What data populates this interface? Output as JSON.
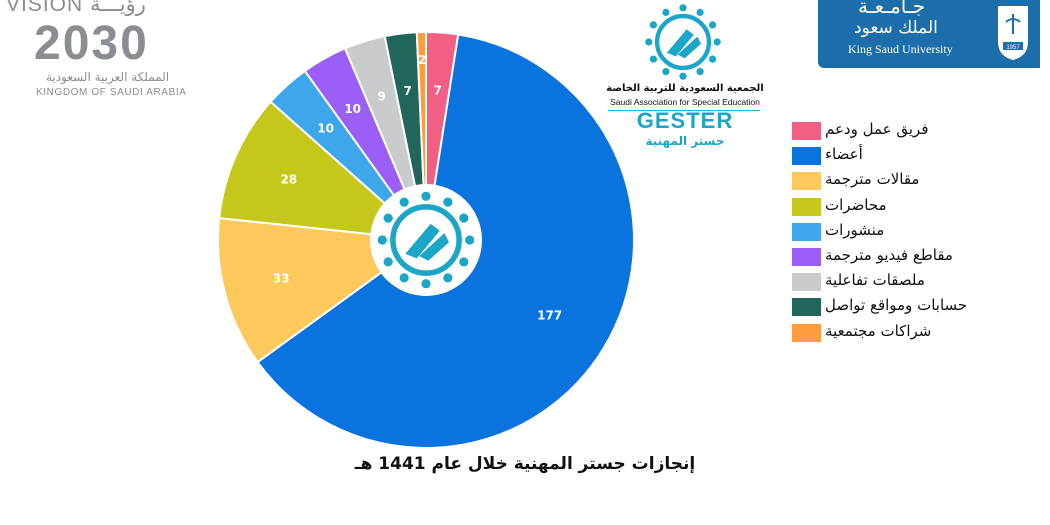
{
  "colors": {
    "ksu_blue": "#1b6ea9",
    "assoc_teal": "#1ba6c8",
    "gray_logo": "#8a8d91"
  },
  "logos": {
    "vision": {
      "top": "VISION رؤيـــة",
      "year": "2030",
      "arabic": "المملكة العربية السعودية",
      "english": "KINGDOM OF SAUDI ARABIA"
    },
    "ksu": {
      "arabic_line1": "جـامـعـة",
      "arabic_line2": "الملك سعود",
      "english": "King Saud University",
      "emblem_year": "1957"
    },
    "association": {
      "arabic": "الجمعية السعودية للتربية الخاصة",
      "english": "Saudi Association for Special Education",
      "brand": "GESTER",
      "brand_arabic": "جستر المهنية"
    }
  },
  "chart_data": {
    "type": "pie",
    "title": "إنجازات جستر المهنية خلال عام 1441 هـ",
    "legend_position": "right",
    "categories": [
      "فريق عمل ودعم",
      "أعضاء",
      "مقالات مترجمة",
      "محاضرات",
      "منشورات",
      "مقاطع فيديو مترجمة",
      "ملصقات تفاعلية",
      "حسابات ومواقع تواصل",
      "شراكات مجتمعية"
    ],
    "values": [
      7,
      177,
      33,
      28,
      10,
      10,
      9,
      7,
      2
    ],
    "colors": [
      "#f25f85",
      "#0b73de",
      "#fdc95c",
      "#c6c71b",
      "#3ea6ea",
      "#9b5ef7",
      "#cacbcd",
      "#21665a",
      "#fe9c3e"
    ],
    "label_colors": [
      "#ffffff",
      "#ffffff",
      "#ffffff",
      "#ffffff",
      "#ffffff",
      "#ffffff",
      "#ffffff",
      "#ffffff",
      "#ffffff"
    ]
  }
}
